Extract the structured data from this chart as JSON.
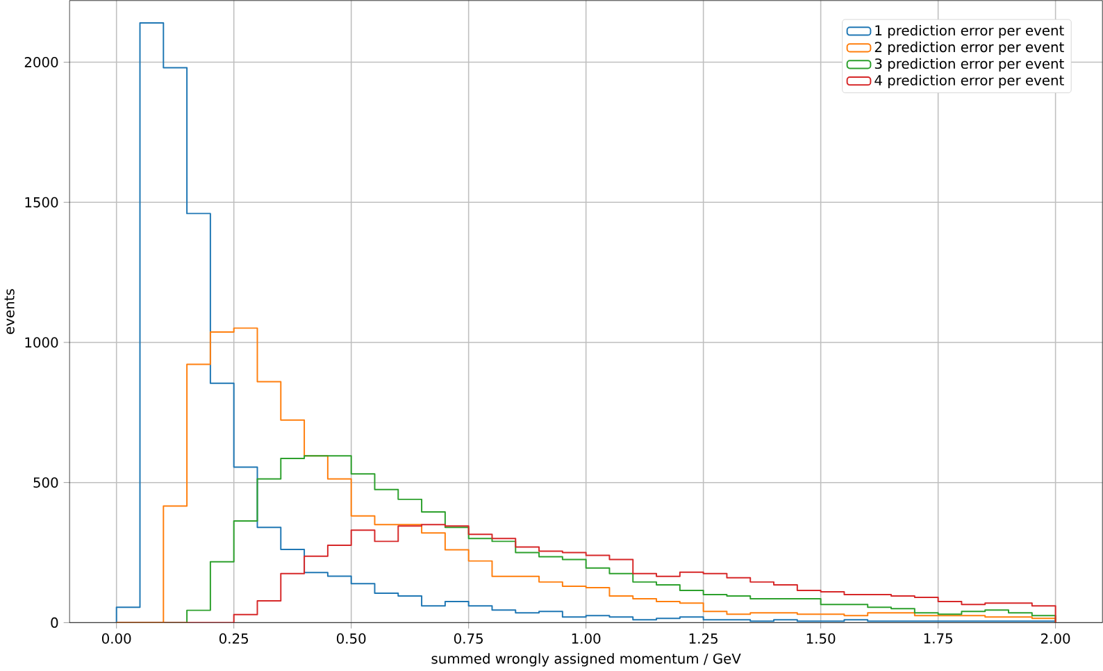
{
  "chart_data": {
    "type": "histogram",
    "xlabel": "summed wrongly assigned momentum / GeV",
    "ylabel": "events",
    "bins": [
      0,
      0.05,
      0.1,
      0.15,
      0.2,
      0.25,
      0.3,
      0.35,
      0.4,
      0.45,
      0.5,
      0.55,
      0.6,
      0.65,
      0.7,
      0.75,
      0.8,
      0.85,
      0.9,
      0.95,
      1.0,
      1.05,
      1.1,
      1.15,
      1.2,
      1.25,
      1.3,
      1.35,
      1.4,
      1.45,
      1.5,
      1.55,
      1.6,
      1.65,
      1.7,
      1.75,
      1.8,
      1.85,
      1.9,
      1.95,
      2.0
    ],
    "series": [
      {
        "name": "1 prediction error per event",
        "color": "#1f77b4",
        "values": [
          55,
          2140,
          1980,
          1460,
          854,
          555,
          340,
          261,
          179,
          166,
          139,
          105,
          95,
          60,
          75,
          60,
          45,
          35,
          40,
          20,
          25,
          20,
          10,
          15,
          20,
          10,
          10,
          5,
          10,
          5,
          5,
          10,
          5,
          5,
          5,
          5,
          5,
          5,
          5,
          5
        ]
      },
      {
        "name": "2 prediction error per event",
        "color": "#ff7f0e",
        "values": [
          0,
          0,
          416,
          922,
          1037,
          1051,
          860,
          723,
          595,
          513,
          381,
          350,
          350,
          320,
          260,
          220,
          165,
          165,
          145,
          130,
          125,
          95,
          85,
          75,
          70,
          40,
          30,
          35,
          35,
          30,
          30,
          25,
          35,
          35,
          25,
          25,
          25,
          20,
          20,
          15
        ]
      },
      {
        "name": "3 prediction error per event",
        "color": "#2ca02c",
        "values": [
          0,
          0,
          0,
          44,
          217,
          363,
          513,
          586,
          595,
          595,
          531,
          475,
          440,
          395,
          340,
          300,
          290,
          250,
          235,
          225,
          195,
          175,
          145,
          135,
          115,
          100,
          95,
          85,
          85,
          85,
          65,
          65,
          55,
          50,
          35,
          30,
          40,
          45,
          35,
          25
        ]
      },
      {
        "name": "4 prediction error per event",
        "color": "#d62728",
        "values": [
          0,
          0,
          0,
          0,
          0,
          29,
          78,
          175,
          237,
          276,
          330,
          290,
          345,
          350,
          345,
          315,
          300,
          270,
          255,
          250,
          240,
          225,
          175,
          165,
          180,
          175,
          160,
          145,
          135,
          115,
          110,
          100,
          100,
          95,
          90,
          75,
          65,
          70,
          70,
          60
        ]
      }
    ],
    "xlim": [
      -0.1,
      2.1
    ],
    "ylim": [
      0,
      2220
    ],
    "xticks": [
      {
        "value": 0,
        "label": "0.00"
      },
      {
        "value": 0.25,
        "label": "0.25"
      },
      {
        "value": 0.5,
        "label": "0.50"
      },
      {
        "value": 0.75,
        "label": "0.75"
      },
      {
        "value": 1,
        "label": "1.00"
      },
      {
        "value": 1.25,
        "label": "1.25"
      },
      {
        "value": 1.5,
        "label": "1.50"
      },
      {
        "value": 1.75,
        "label": "1.75"
      },
      {
        "value": 2,
        "label": "2.00"
      }
    ],
    "yticks": [
      0,
      500,
      1000,
      1500,
      2000
    ],
    "grid": true,
    "legend": "top right"
  }
}
